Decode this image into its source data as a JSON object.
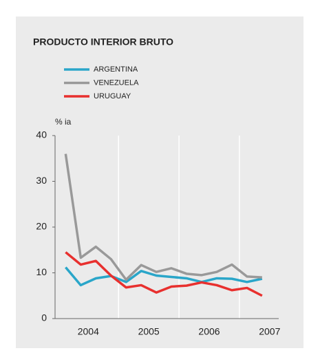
{
  "chart_data": {
    "type": "line",
    "title": "PRODUCTO INTERIOR BRUTO",
    "y_label": "% ia",
    "x": [
      2004.125,
      2004.375,
      2004.625,
      2004.875,
      2005.125,
      2005.375,
      2005.625,
      2005.875,
      2006.125,
      2006.375,
      2006.625,
      2006.875,
      2007.125,
      2007.375
    ],
    "series": [
      {
        "name": "ARGENTINA",
        "color": "#2aa6c9",
        "values": [
          11.2,
          7.3,
          8.8,
          9.3,
          8.0,
          10.4,
          9.4,
          9.1,
          8.8,
          8.0,
          8.8,
          8.7,
          8.0,
          8.7
        ]
      },
      {
        "name": "VENEZUELA",
        "color": "#999999",
        "values": [
          36.0,
          13.3,
          15.7,
          13.0,
          8.5,
          11.7,
          10.2,
          11.0,
          9.8,
          9.5,
          10.2,
          11.8,
          9.2,
          9.0
        ]
      },
      {
        "name": "URUGUAY",
        "color": "#e8302e",
        "values": [
          14.5,
          11.8,
          12.6,
          9.4,
          6.8,
          7.3,
          5.7,
          7.0,
          7.2,
          7.9,
          7.3,
          6.2,
          6.7,
          5.0
        ]
      }
    ],
    "xlim": [
      2003.95,
      2007.65
    ],
    "xticks": [
      {
        "value": 2004.5,
        "label": "2004"
      },
      {
        "value": 2005.5,
        "label": "2005"
      },
      {
        "value": 2006.5,
        "label": "2006"
      },
      {
        "value": 2007.5,
        "label": "2007"
      }
    ],
    "x_grid": [
      2005,
      2006,
      2007
    ],
    "ylim": [
      0,
      40
    ],
    "yticks": [
      0,
      10,
      20,
      30,
      40
    ]
  }
}
